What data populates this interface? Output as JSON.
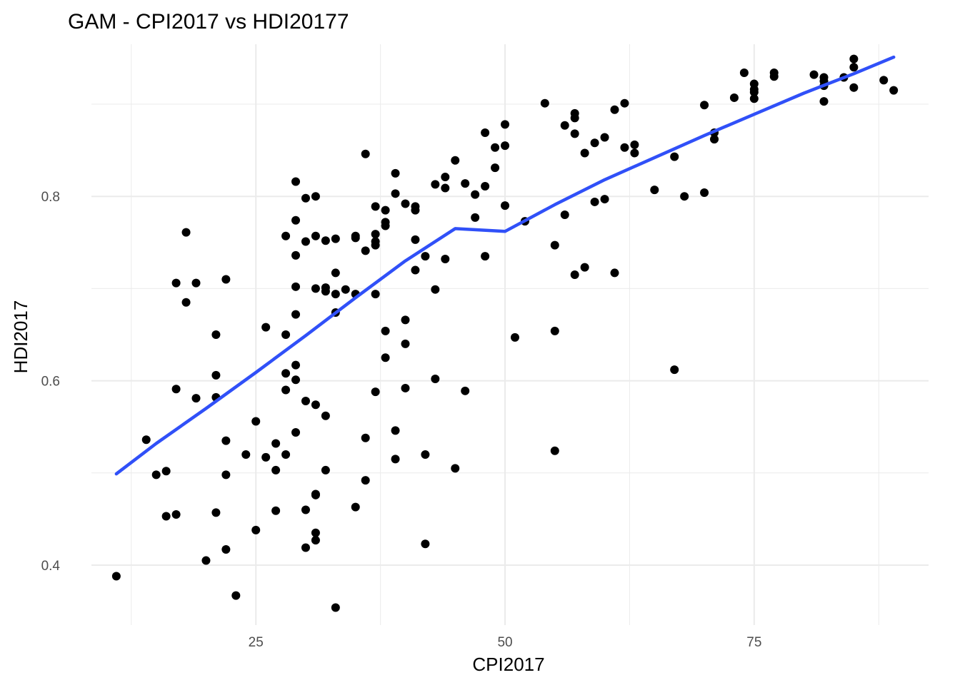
{
  "chart_data": {
    "type": "scatter",
    "title": "GAM - CPI2017 vs HDI20177",
    "xlabel": "CPI2017",
    "ylabel": "HDI2017",
    "xlim": [
      8.5,
      92.5
    ],
    "ylim": [
      0.335,
      0.965
    ],
    "x_ticks": [
      25,
      50,
      75
    ],
    "x_tick_labels": [
      "25",
      "50",
      "75"
    ],
    "y_ticks": [
      0.4,
      0.6,
      0.8
    ],
    "y_tick_labels": [
      "0.4",
      "0.6",
      "0.8"
    ],
    "grid": true,
    "legend": "none",
    "point_color": "#000000",
    "line_color": "#3050f8",
    "points": [
      [
        11,
        0.388
      ],
      [
        14,
        0.536
      ],
      [
        15,
        0.498
      ],
      [
        16,
        0.502
      ],
      [
        16,
        0.453
      ],
      [
        17,
        0.455
      ],
      [
        17,
        0.591
      ],
      [
        17,
        0.706
      ],
      [
        18,
        0.685
      ],
      [
        18,
        0.761
      ],
      [
        19,
        0.581
      ],
      [
        19,
        0.706
      ],
      [
        20,
        0.405
      ],
      [
        21,
        0.457
      ],
      [
        21,
        0.582
      ],
      [
        21,
        0.606
      ],
      [
        21,
        0.65
      ],
      [
        22,
        0.417
      ],
      [
        22,
        0.498
      ],
      [
        22,
        0.535
      ],
      [
        22,
        0.71
      ],
      [
        23,
        0.367
      ],
      [
        24,
        0.52
      ],
      [
        25,
        0.438
      ],
      [
        25,
        0.556
      ],
      [
        26,
        0.517
      ],
      [
        26,
        0.658
      ],
      [
        27,
        0.459
      ],
      [
        27,
        0.503
      ],
      [
        27,
        0.532
      ],
      [
        28,
        0.52
      ],
      [
        28,
        0.59
      ],
      [
        28,
        0.608
      ],
      [
        28,
        0.65
      ],
      [
        28,
        0.757
      ],
      [
        29,
        0.544
      ],
      [
        29,
        0.601
      ],
      [
        29,
        0.617
      ],
      [
        29,
        0.672
      ],
      [
        29,
        0.702
      ],
      [
        29,
        0.736
      ],
      [
        29,
        0.774
      ],
      [
        29,
        0.816
      ],
      [
        30,
        0.419
      ],
      [
        30,
        0.46
      ],
      [
        30,
        0.578
      ],
      [
        30,
        0.751
      ],
      [
        30,
        0.798
      ],
      [
        31,
        0.427
      ],
      [
        31,
        0.435
      ],
      [
        31,
        0.476
      ],
      [
        31,
        0.477
      ],
      [
        31,
        0.574
      ],
      [
        31,
        0.7
      ],
      [
        31,
        0.757
      ],
      [
        31,
        0.8
      ],
      [
        32,
        0.503
      ],
      [
        32,
        0.562
      ],
      [
        32,
        0.697
      ],
      [
        32,
        0.701
      ],
      [
        32,
        0.752
      ],
      [
        33,
        0.354
      ],
      [
        33,
        0.674
      ],
      [
        33,
        0.694
      ],
      [
        33,
        0.717
      ],
      [
        33,
        0.754
      ],
      [
        34,
        0.699
      ],
      [
        35,
        0.463
      ],
      [
        35,
        0.694
      ],
      [
        35,
        0.755
      ],
      [
        35,
        0.757
      ],
      [
        36,
        0.492
      ],
      [
        36,
        0.538
      ],
      [
        36,
        0.741
      ],
      [
        36,
        0.846
      ],
      [
        37,
        0.588
      ],
      [
        37,
        0.694
      ],
      [
        37,
        0.747
      ],
      [
        37,
        0.751
      ],
      [
        37,
        0.759
      ],
      [
        37,
        0.789
      ],
      [
        38,
        0.625
      ],
      [
        38,
        0.654
      ],
      [
        38,
        0.768
      ],
      [
        38,
        0.772
      ],
      [
        38,
        0.785
      ],
      [
        39,
        0.515
      ],
      [
        39,
        0.546
      ],
      [
        39,
        0.803
      ],
      [
        39,
        0.825
      ],
      [
        40,
        0.592
      ],
      [
        40,
        0.64
      ],
      [
        40,
        0.666
      ],
      [
        40,
        0.792
      ],
      [
        41,
        0.72
      ],
      [
        41,
        0.753
      ],
      [
        41,
        0.785
      ],
      [
        41,
        0.789
      ],
      [
        42,
        0.423
      ],
      [
        42,
        0.52
      ],
      [
        42,
        0.735
      ],
      [
        43,
        0.602
      ],
      [
        43,
        0.699
      ],
      [
        43,
        0.813
      ],
      [
        44,
        0.732
      ],
      [
        44,
        0.809
      ],
      [
        44,
        0.821
      ],
      [
        45,
        0.505
      ],
      [
        45,
        0.839
      ],
      [
        46,
        0.589
      ],
      [
        46,
        0.814
      ],
      [
        47,
        0.777
      ],
      [
        47,
        0.802
      ],
      [
        48,
        0.735
      ],
      [
        48,
        0.811
      ],
      [
        48,
        0.869
      ],
      [
        49,
        0.831
      ],
      [
        49,
        0.853
      ],
      [
        50,
        0.79
      ],
      [
        50,
        0.855
      ],
      [
        50,
        0.878
      ],
      [
        51,
        0.647
      ],
      [
        52,
        0.773
      ],
      [
        54,
        0.901
      ],
      [
        55,
        0.524
      ],
      [
        55,
        0.654
      ],
      [
        55,
        0.747
      ],
      [
        56,
        0.78
      ],
      [
        56,
        0.877
      ],
      [
        57,
        0.715
      ],
      [
        57,
        0.868
      ],
      [
        57,
        0.885
      ],
      [
        57,
        0.89
      ],
      [
        58,
        0.723
      ],
      [
        58,
        0.847
      ],
      [
        59,
        0.794
      ],
      [
        59,
        0.858
      ],
      [
        60,
        0.797
      ],
      [
        60,
        0.864
      ],
      [
        61,
        0.717
      ],
      [
        61,
        0.894
      ],
      [
        62,
        0.853
      ],
      [
        62,
        0.901
      ],
      [
        63,
        0.847
      ],
      [
        63,
        0.856
      ],
      [
        65,
        0.807
      ],
      [
        67,
        0.612
      ],
      [
        67,
        0.843
      ],
      [
        68,
        0.8
      ],
      [
        70,
        0.804
      ],
      [
        70,
        0.899
      ],
      [
        71,
        0.862
      ],
      [
        71,
        0.869
      ],
      [
        73,
        0.907
      ],
      [
        74,
        0.934
      ],
      [
        75,
        0.906
      ],
      [
        75,
        0.913
      ],
      [
        75,
        0.916
      ],
      [
        75,
        0.922
      ],
      [
        77,
        0.93
      ],
      [
        77,
        0.934
      ],
      [
        81,
        0.932
      ],
      [
        82,
        0.903
      ],
      [
        82,
        0.92
      ],
      [
        82,
        0.925
      ],
      [
        82,
        0.929
      ],
      [
        84,
        0.929
      ],
      [
        85,
        0.918
      ],
      [
        85,
        0.94
      ],
      [
        85,
        0.949
      ],
      [
        88,
        0.926
      ],
      [
        89,
        0.915
      ]
    ],
    "smooth": [
      [
        11,
        0.499
      ],
      [
        15,
        0.532
      ],
      [
        20,
        0.57
      ],
      [
        25,
        0.609
      ],
      [
        30,
        0.649
      ],
      [
        35,
        0.69
      ],
      [
        40,
        0.73
      ],
      [
        45,
        0.765
      ],
      [
        50,
        0.762
      ],
      [
        55,
        0.791
      ],
      [
        60,
        0.818
      ],
      [
        65,
        0.842
      ],
      [
        70,
        0.866
      ],
      [
        75,
        0.889
      ],
      [
        80,
        0.912
      ],
      [
        85,
        0.933
      ],
      [
        89,
        0.951
      ]
    ]
  }
}
